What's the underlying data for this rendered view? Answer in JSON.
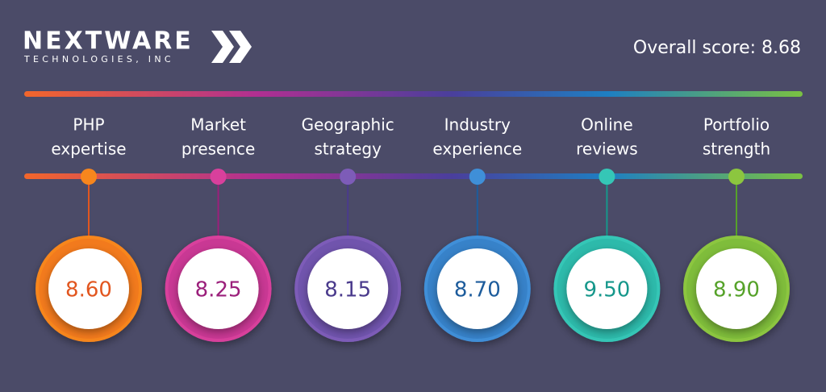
{
  "header": {
    "logo_name": "NEXTWARE",
    "logo_sub": "TECHNOLOGIES, INC",
    "overall": "Overall score: 8.68"
  },
  "items": [
    {
      "label_lines": [
        "PHP",
        "expertise"
      ],
      "score": "8.60",
      "color": "#f7861d",
      "dark": "#e2561f"
    },
    {
      "label_lines": [
        "Market",
        "presence"
      ],
      "score": "8.25",
      "color": "#d8409c",
      "dark": "#9b1f7b"
    },
    {
      "label_lines": [
        "Geographic",
        "strategy"
      ],
      "score": "8.15",
      "color": "#7d5cb8",
      "dark": "#4a3a8c"
    },
    {
      "label_lines": [
        "Industry",
        "experience"
      ],
      "score": "8.70",
      "color": "#3f8fd8",
      "dark": "#1d5c9c"
    },
    {
      "label_lines": [
        "Online",
        "reviews"
      ],
      "score": "9.50",
      "color": "#35c6b6",
      "dark": "#16978b"
    },
    {
      "label_lines": [
        "Portfolio",
        "strength"
      ],
      "score": "8.90",
      "color": "#8cc63f",
      "dark": "#56a22a"
    }
  ]
}
